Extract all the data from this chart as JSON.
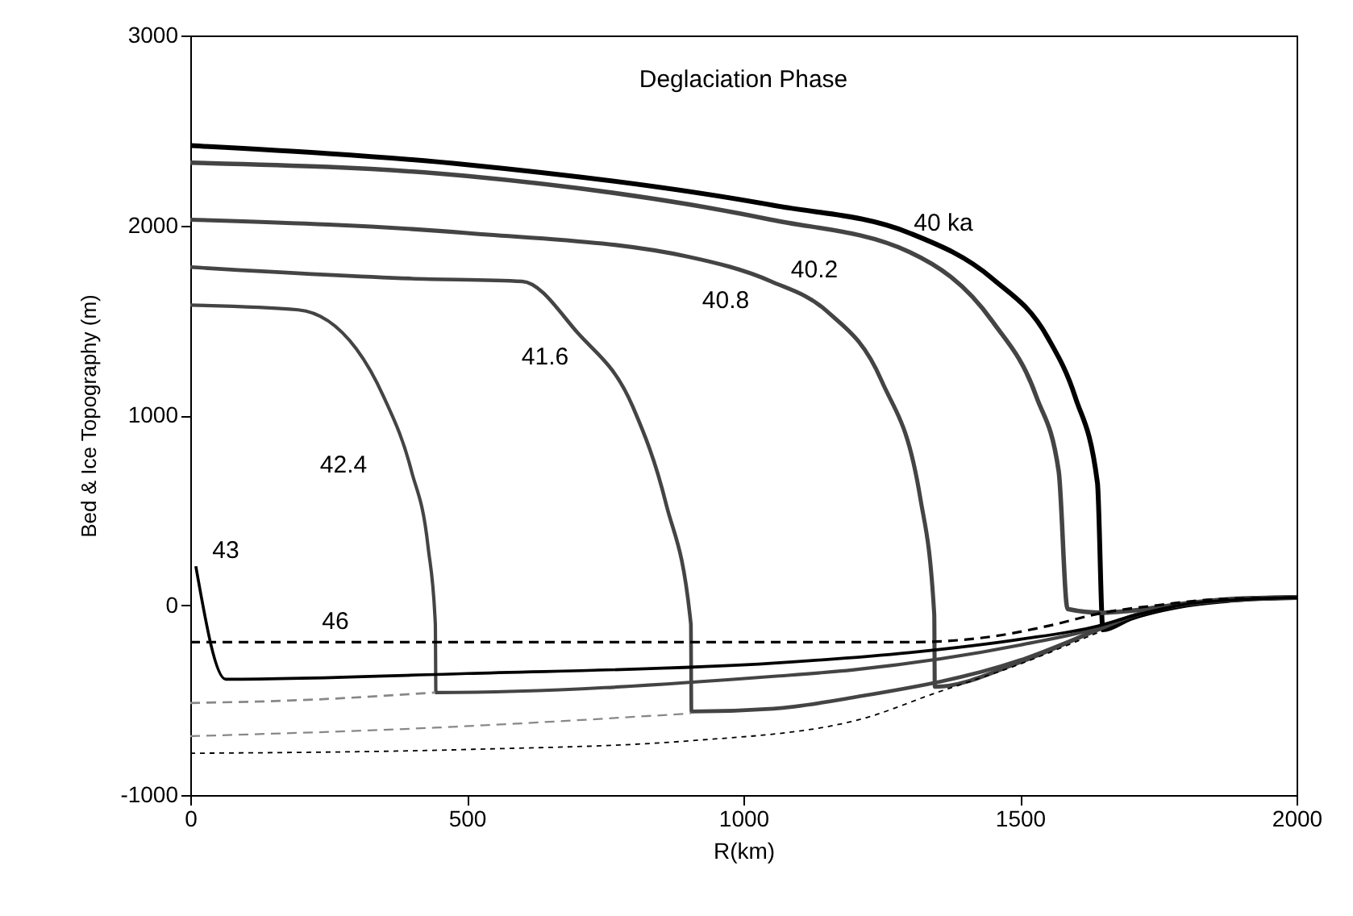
{
  "chart_data": {
    "type": "line",
    "title": "Deglaciation Phase",
    "xlabel": "R(km)",
    "ylabel": "Bed & Ice Topography (m)",
    "xlim": [
      0,
      2000
    ],
    "xticks": [
      0,
      500,
      1000,
      1500,
      2000
    ],
    "ylim": [
      -1000,
      3000
    ],
    "yticks": [
      -1000,
      0,
      1000,
      2000,
      3000
    ],
    "grid": false,
    "legend": false,
    "marker": "none",
    "series": [
      {
        "color": "#000000",
        "line_style": "solid",
        "x": [
          0,
          500,
          1055,
          1300,
          1450,
          1550,
          1600,
          1640,
          1650,
          1700,
          1800,
          1900,
          2000
        ],
        "values": [
          2420,
          2320,
          2105,
          1960,
          1720,
          1410,
          1095,
          645,
          -130,
          -70,
          0,
          30,
          40
        ]
      },
      {
        "color": "#444444",
        "line_style": "solid",
        "x": [
          0,
          500,
          1050,
          1300,
          1450,
          1530,
          1570,
          1586,
          1650,
          1700,
          1800,
          1900,
          2000
        ],
        "values": [
          2330,
          2260,
          2030,
          1860,
          1495,
          1095,
          705,
          -20,
          -40,
          -30,
          10,
          35,
          40
        ]
      },
      {
        "color": "#444444",
        "line_style": "solid",
        "x": [
          0,
          500,
          900,
          1050,
          1150,
          1250,
          1320,
          1345,
          1346,
          1500,
          1640,
          1700,
          1800,
          1900,
          2000
        ],
        "values": [
          2030,
          1960,
          1835,
          1705,
          1550,
          1180,
          560,
          -50,
          -430,
          -300,
          -130,
          -60,
          5,
          30,
          40
        ]
      },
      {
        "color": "#444444",
        "line_style": "solid",
        "x": [
          0,
          400,
          600,
          700,
          800,
          860,
          905,
          906,
          1055,
          1200,
          1500,
          1640,
          1700,
          1800,
          1900,
          2000
        ],
        "values": [
          1780,
          1720,
          1705,
          1435,
          1045,
          535,
          -100,
          -560,
          -545,
          -485,
          -290,
          -130,
          -60,
          5,
          30,
          40
        ]
      },
      {
        "color": "#444444",
        "line_style": "solid",
        "x": [
          0,
          195,
          300,
          350,
          400,
          430,
          443,
          444,
          1055,
          1200,
          1500,
          1640,
          1700,
          1800,
          1900,
          2000
        ],
        "values": [
          1580,
          1555,
          1350,
          1095,
          705,
          305,
          -100,
          -460,
          -375,
          -340,
          -210,
          -120,
          -60,
          5,
          30,
          40
        ]
      },
      {
        "color": "#000000",
        "line_style": "solid",
        "x": [
          10,
          64,
          500,
          1055,
          1300,
          1500,
          1640,
          1700,
          1800,
          1900,
          2000
        ],
        "values": [
          205,
          -390,
          -360,
          -305,
          -250,
          -180,
          -110,
          -60,
          5,
          30,
          40
        ]
      },
      {
        "color": "#000000",
        "line_style": "dashed",
        "x": [
          0,
          1300,
          1450,
          1550,
          1650,
          1750,
          1850,
          2000
        ],
        "values": [
          -195,
          -195,
          -165,
          -110,
          -40,
          0,
          30,
          40
        ]
      },
      {
        "color": "#888888",
        "line_style": "dashed",
        "x": [
          0,
          200,
          443
        ],
        "values": [
          -515,
          -500,
          -460
        ]
      },
      {
        "color": "#888888",
        "line_style": "dashed",
        "x": [
          0,
          443,
          905
        ],
        "values": [
          -690,
          -645,
          -570
        ]
      },
      {
        "color": "#000000",
        "line_style": "dotted",
        "x": [
          0,
          500,
          900,
          1200,
          1350,
          1500,
          1640
        ],
        "values": [
          -780,
          -760,
          -715,
          -610,
          -460,
          -310,
          -145
        ]
      }
    ],
    "annotations": [
      "40 ka",
      "40.2",
      "40.8",
      "41.6",
      "42.4",
      "43",
      "46"
    ]
  }
}
